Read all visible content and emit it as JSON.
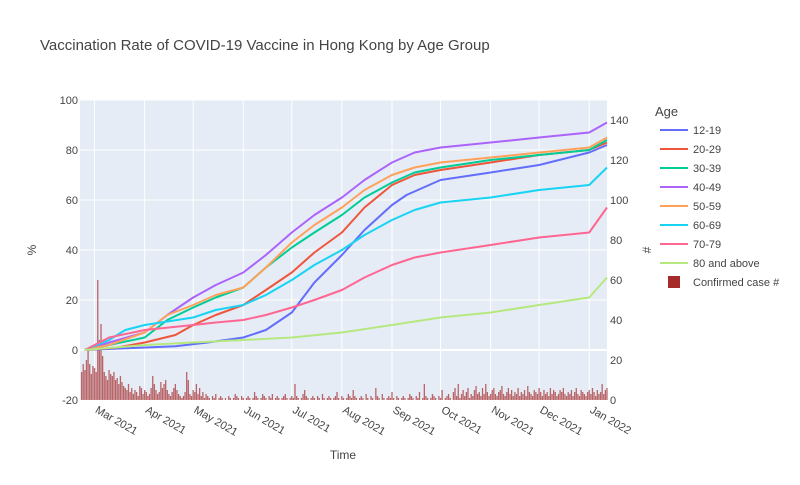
{
  "chart_data": {
    "type": "line",
    "title": "Vaccination Rate of COVID-19 Vaccine in Hong Kong by Age Group",
    "xlabel": "Time",
    "ylabel": "%",
    "y2label": "#",
    "legend_title": "Age",
    "legend_position": "right",
    "x_tick_labels": [
      "Mar 2021",
      "Apr 2021",
      "May 2021",
      "Jun 2021",
      "Jul 2021",
      "Aug 2021",
      "Sep 2021",
      "Oct 2021",
      "Nov 2021",
      "Dec 2021",
      "Jan 2022"
    ],
    "x_tick_dates": [
      "2021-03-01",
      "2021-04-01",
      "2021-05-01",
      "2021-06-01",
      "2021-07-01",
      "2021-08-01",
      "2021-09-01",
      "2021-10-01",
      "2021-11-01",
      "2021-12-01",
      "2022-01-01"
    ],
    "x_range": [
      "2021-02-20",
      "2022-01-12"
    ],
    "y_ticks": [
      -20,
      0,
      20,
      40,
      60,
      80,
      100
    ],
    "y_range": [
      -20,
      100
    ],
    "y2_ticks": [
      0,
      20,
      40,
      60,
      80,
      100,
      120,
      140
    ],
    "y2_range": [
      0,
      150
    ],
    "grid": true,
    "background_color": "#e5ecf6",
    "series": [
      {
        "name": "12-19",
        "color": "#636efa",
        "points": [
          [
            "2021-02-23",
            0
          ],
          [
            "2021-03-20",
            0.7
          ],
          [
            "2021-04-20",
            1.5
          ],
          [
            "2021-05-10",
            3
          ],
          [
            "2021-06-01",
            5
          ],
          [
            "2021-06-15",
            8
          ],
          [
            "2021-07-01",
            15
          ],
          [
            "2021-07-15",
            27
          ],
          [
            "2021-08-01",
            38
          ],
          [
            "2021-08-15",
            48
          ],
          [
            "2021-09-01",
            58
          ],
          [
            "2021-09-10",
            62
          ],
          [
            "2021-10-01",
            68
          ],
          [
            "2021-11-01",
            71
          ],
          [
            "2021-12-01",
            74
          ],
          [
            "2022-01-01",
            79
          ],
          [
            "2022-01-12",
            82
          ]
        ]
      },
      {
        "name": "20-29",
        "color": "#ef553b",
        "points": [
          [
            "2021-02-23",
            0
          ],
          [
            "2021-03-15",
            1
          ],
          [
            "2021-04-01",
            3
          ],
          [
            "2021-04-20",
            6
          ],
          [
            "2021-05-01",
            10
          ],
          [
            "2021-05-15",
            14
          ],
          [
            "2021-06-01",
            18
          ],
          [
            "2021-06-15",
            24
          ],
          [
            "2021-07-01",
            31
          ],
          [
            "2021-07-15",
            39
          ],
          [
            "2021-08-01",
            47
          ],
          [
            "2021-08-15",
            57
          ],
          [
            "2021-09-01",
            66
          ],
          [
            "2021-09-15",
            70
          ],
          [
            "2021-10-01",
            72
          ],
          [
            "2021-11-01",
            75
          ],
          [
            "2021-12-01",
            78
          ],
          [
            "2022-01-01",
            80
          ],
          [
            "2022-01-12",
            83
          ]
        ]
      },
      {
        "name": "30-39",
        "color": "#00cc96",
        "points": [
          [
            "2021-02-23",
            0
          ],
          [
            "2021-03-10",
            2
          ],
          [
            "2021-04-01",
            5
          ],
          [
            "2021-04-15",
            12
          ],
          [
            "2021-05-01",
            17
          ],
          [
            "2021-05-15",
            21
          ],
          [
            "2021-06-01",
            25
          ],
          [
            "2021-06-15",
            33
          ],
          [
            "2021-07-01",
            41
          ],
          [
            "2021-07-15",
            47
          ],
          [
            "2021-08-01",
            54
          ],
          [
            "2021-08-15",
            61
          ],
          [
            "2021-09-01",
            67
          ],
          [
            "2021-09-15",
            71
          ],
          [
            "2021-10-01",
            73
          ],
          [
            "2021-11-01",
            76
          ],
          [
            "2021-12-01",
            78
          ],
          [
            "2022-01-01",
            80
          ],
          [
            "2022-01-12",
            84
          ]
        ]
      },
      {
        "name": "40-49",
        "color": "#ab63fa",
        "points": [
          [
            "2021-02-23",
            0
          ],
          [
            "2021-03-10",
            3
          ],
          [
            "2021-04-01",
            7
          ],
          [
            "2021-04-15",
            14
          ],
          [
            "2021-05-01",
            21
          ],
          [
            "2021-05-15",
            26
          ],
          [
            "2021-06-01",
            31
          ],
          [
            "2021-06-15",
            38
          ],
          [
            "2021-07-01",
            47
          ],
          [
            "2021-07-15",
            54
          ],
          [
            "2021-08-01",
            61
          ],
          [
            "2021-08-15",
            68
          ],
          [
            "2021-09-01",
            75
          ],
          [
            "2021-09-15",
            79
          ],
          [
            "2021-10-01",
            81
          ],
          [
            "2021-11-01",
            83
          ],
          [
            "2021-12-01",
            85
          ],
          [
            "2022-01-01",
            87
          ],
          [
            "2022-01-12",
            91
          ]
        ]
      },
      {
        "name": "50-59",
        "color": "#ffa15a",
        "points": [
          [
            "2021-02-23",
            0
          ],
          [
            "2021-03-10",
            2
          ],
          [
            "2021-04-01",
            7
          ],
          [
            "2021-04-15",
            14
          ],
          [
            "2021-05-01",
            18
          ],
          [
            "2021-05-15",
            22
          ],
          [
            "2021-06-01",
            25
          ],
          [
            "2021-06-15",
            33
          ],
          [
            "2021-07-01",
            43
          ],
          [
            "2021-07-15",
            50
          ],
          [
            "2021-08-01",
            57
          ],
          [
            "2021-08-15",
            64
          ],
          [
            "2021-09-01",
            70
          ],
          [
            "2021-09-15",
            73
          ],
          [
            "2021-10-01",
            75
          ],
          [
            "2021-11-01",
            77
          ],
          [
            "2021-12-01",
            79
          ],
          [
            "2022-01-01",
            81
          ],
          [
            "2022-01-12",
            85
          ]
        ]
      },
      {
        "name": "60-69",
        "color": "#19d3f3",
        "points": [
          [
            "2021-02-23",
            0
          ],
          [
            "2021-03-10",
            4
          ],
          [
            "2021-03-20",
            8
          ],
          [
            "2021-04-01",
            10
          ],
          [
            "2021-05-01",
            13
          ],
          [
            "2021-05-15",
            16
          ],
          [
            "2021-06-01",
            18
          ],
          [
            "2021-06-15",
            22
          ],
          [
            "2021-07-01",
            28
          ],
          [
            "2021-07-15",
            34
          ],
          [
            "2021-08-01",
            40
          ],
          [
            "2021-08-15",
            46
          ],
          [
            "2021-09-01",
            52
          ],
          [
            "2021-09-15",
            56
          ],
          [
            "2021-10-01",
            59
          ],
          [
            "2021-11-01",
            61
          ],
          [
            "2021-12-01",
            64
          ],
          [
            "2022-01-01",
            66
          ],
          [
            "2022-01-12",
            73
          ]
        ]
      },
      {
        "name": "70-79",
        "color": "#ff6692",
        "points": [
          [
            "2021-02-23",
            0
          ],
          [
            "2021-03-10",
            5
          ],
          [
            "2021-04-01",
            8
          ],
          [
            "2021-05-01",
            10
          ],
          [
            "2021-05-15",
            11
          ],
          [
            "2021-06-01",
            12
          ],
          [
            "2021-06-15",
            14
          ],
          [
            "2021-07-01",
            17
          ],
          [
            "2021-07-15",
            20
          ],
          [
            "2021-08-01",
            24
          ],
          [
            "2021-08-15",
            29
          ],
          [
            "2021-09-01",
            34
          ],
          [
            "2021-09-15",
            37
          ],
          [
            "2021-10-01",
            39
          ],
          [
            "2021-11-01",
            42
          ],
          [
            "2021-12-01",
            45
          ],
          [
            "2022-01-01",
            47
          ],
          [
            "2022-01-12",
            57
          ]
        ]
      },
      {
        "name": "80 and above",
        "color": "#b6e880",
        "points": [
          [
            "2021-02-23",
            0
          ],
          [
            "2021-04-01",
            2
          ],
          [
            "2021-05-01",
            3
          ],
          [
            "2021-06-01",
            4
          ],
          [
            "2021-07-01",
            5
          ],
          [
            "2021-08-01",
            7
          ],
          [
            "2021-09-01",
            10
          ],
          [
            "2021-10-01",
            13
          ],
          [
            "2021-11-01",
            15
          ],
          [
            "2021-12-01",
            18
          ],
          [
            "2022-01-01",
            21
          ],
          [
            "2022-01-12",
            29
          ]
        ]
      }
    ],
    "bar_series": {
      "name": "Confirmed case #",
      "color": "#a52a2a",
      "axis": "y2",
      "start_date": "2021-02-21",
      "values": [
        14,
        18,
        15,
        20,
        26,
        18,
        13,
        17,
        16,
        14,
        60,
        30,
        38,
        22,
        14,
        12,
        10,
        15,
        13,
        12,
        14,
        10,
        11,
        8,
        12,
        9,
        7,
        6,
        5,
        8,
        4,
        6,
        3,
        5,
        4,
        2,
        7,
        6,
        3,
        5,
        4,
        2,
        3,
        6,
        12,
        8,
        5,
        3,
        4,
        9,
        6,
        8,
        10,
        5,
        3,
        2,
        4,
        6,
        8,
        5,
        3,
        2,
        1,
        2,
        4,
        14,
        10,
        3,
        2,
        5,
        4,
        8,
        3,
        6,
        2,
        4,
        1,
        3,
        2,
        1,
        0,
        2,
        1,
        3,
        0,
        1,
        2,
        1,
        0,
        1,
        0,
        2,
        1,
        0,
        1,
        3,
        2,
        1,
        0,
        2,
        1,
        0,
        1,
        2,
        1,
        0,
        1,
        4,
        2,
        1,
        0,
        1,
        3,
        2,
        1,
        0,
        2,
        1,
        3,
        0,
        1,
        2,
        1,
        0,
        1,
        2,
        3,
        1,
        0,
        1,
        2,
        1,
        8,
        2,
        1,
        0,
        1,
        3,
        5,
        2,
        1,
        0,
        1,
        2,
        1,
        0,
        2,
        1,
        0,
        3,
        1,
        0,
        1,
        2,
        1,
        0,
        1,
        2,
        4,
        1,
        0,
        2,
        1,
        0,
        1,
        3,
        2,
        1,
        5,
        2,
        1,
        0,
        1,
        2,
        1,
        0,
        3,
        1,
        0,
        2,
        1,
        0,
        6,
        2,
        1,
        0,
        3,
        1,
        0,
        1,
        2,
        1,
        4,
        1,
        0,
        2,
        1,
        0,
        1,
        2,
        1,
        0,
        1,
        3,
        2,
        1,
        0,
        2,
        1,
        4,
        0,
        1,
        8,
        2,
        1,
        0,
        1,
        3,
        2,
        1,
        0,
        2,
        1,
        5,
        0,
        1,
        2,
        3,
        1,
        0,
        4,
        6,
        2,
        8,
        1,
        3,
        5,
        2,
        4,
        6,
        1,
        3,
        2,
        5,
        7,
        3,
        4,
        2,
        6,
        3,
        8,
        4,
        2,
        3,
        5,
        6,
        3,
        2,
        4,
        5,
        7,
        3,
        2,
        4,
        6,
        3,
        5,
        2,
        4,
        3,
        6,
        2,
        4,
        3,
        5,
        2,
        7,
        4,
        3,
        2,
        5,
        4,
        3,
        6,
        4,
        2,
        5,
        3,
        4,
        2,
        6,
        3,
        5,
        4,
        2,
        3,
        5,
        4,
        6,
        3,
        2,
        4,
        3,
        5,
        2,
        4,
        6,
        3,
        2,
        5,
        4,
        3,
        2,
        4,
        5,
        3,
        6,
        4,
        2,
        5,
        3,
        4,
        8,
        3,
        5,
        6,
        4,
        3,
        9,
        5,
        4,
        7,
        6,
        10,
        8,
        26,
        5,
        7,
        12,
        18,
        14,
        25,
        20,
        40,
        36,
        28,
        30,
        24,
        38,
        20,
        16,
        10,
        14,
        8,
        12,
        6,
        18,
        15,
        20,
        22
      ]
    }
  }
}
